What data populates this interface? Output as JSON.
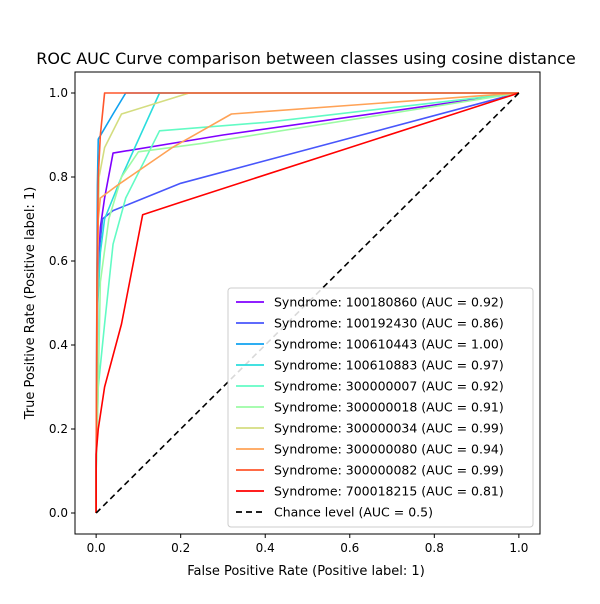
{
  "chart_data": {
    "type": "line",
    "title": "ROC AUC Curve comparison between classes using cosine distance",
    "xlabel": "False Positive Rate (Positive label: 1)",
    "ylabel": "True Positive Rate (Positive label: 1)",
    "xlim": [
      -0.05,
      1.05
    ],
    "ylim": [
      -0.05,
      1.05
    ],
    "xticks": [
      0.0,
      0.2,
      0.4,
      0.6,
      0.8,
      1.0
    ],
    "yticks": [
      0.0,
      0.2,
      0.4,
      0.6,
      0.8,
      1.0
    ],
    "xtick_labels": [
      "0.0",
      "0.2",
      "0.4",
      "0.6",
      "0.8",
      "1.0"
    ],
    "ytick_labels": [
      "0.0",
      "0.2",
      "0.4",
      "0.6",
      "0.8",
      "1.0"
    ],
    "grid": false,
    "legend_position": "lower-right",
    "series": [
      {
        "name": "Syndrome: 100180860 (AUC = 0.92)",
        "color": "#8000ff",
        "points": [
          [
            0,
            0
          ],
          [
            0,
            0.1
          ],
          [
            0.003,
            0.5
          ],
          [
            0.006,
            0.6
          ],
          [
            0.01,
            0.68
          ],
          [
            0.02,
            0.75
          ],
          [
            0.04,
            0.857
          ],
          [
            0.3,
            0.9
          ],
          [
            1,
            1
          ]
        ]
      },
      {
        "name": "Syndrome: 100192430 (AUC = 0.86)",
        "color": "#4856fb",
        "points": [
          [
            0,
            0
          ],
          [
            0,
            0.1
          ],
          [
            0.003,
            0.5
          ],
          [
            0.007,
            0.62
          ],
          [
            0.015,
            0.7
          ],
          [
            0.04,
            0.72
          ],
          [
            0.2,
            0.785
          ],
          [
            1,
            1
          ]
        ]
      },
      {
        "name": "Syndrome: 100610443 (AUC = 1.00)",
        "color": "#10a2f0",
        "points": [
          [
            0,
            0
          ],
          [
            0,
            0.1
          ],
          [
            0.002,
            0.6
          ],
          [
            0.003,
            0.78
          ],
          [
            0.005,
            0.89
          ],
          [
            0.04,
            0.95
          ],
          [
            0.07,
            1.0
          ],
          [
            1,
            1
          ]
        ]
      },
      {
        "name": "Syndrome: 100610883 (AUC = 0.97)",
        "color": "#2adddd",
        "points": [
          [
            0,
            0
          ],
          [
            0,
            0.1
          ],
          [
            0.004,
            0.5
          ],
          [
            0.01,
            0.62
          ],
          [
            0.02,
            0.7
          ],
          [
            0.06,
            0.8
          ],
          [
            0.15,
            1.0
          ],
          [
            1,
            1
          ]
        ]
      },
      {
        "name": "Syndrome: 300000007 (AUC = 0.92)",
        "color": "#62fbc4",
        "points": [
          [
            0,
            0
          ],
          [
            0,
            0.1
          ],
          [
            0.005,
            0.3
          ],
          [
            0.02,
            0.45
          ],
          [
            0.04,
            0.64
          ],
          [
            0.07,
            0.75
          ],
          [
            0.15,
            0.91
          ],
          [
            0.4,
            0.93
          ],
          [
            1,
            1
          ]
        ]
      },
      {
        "name": "Syndrome: 300000018 (AUC = 0.91)",
        "color": "#9cfba4",
        "points": [
          [
            0,
            0
          ],
          [
            0,
            0.1
          ],
          [
            0.005,
            0.3
          ],
          [
            0.01,
            0.55
          ],
          [
            0.03,
            0.7
          ],
          [
            0.06,
            0.8
          ],
          [
            0.1,
            0.86
          ],
          [
            0.25,
            0.88
          ],
          [
            1,
            1
          ]
        ]
      },
      {
        "name": "Syndrome: 300000034 (AUC = 0.99)",
        "color": "#d4dd80",
        "points": [
          [
            0,
            0
          ],
          [
            0,
            0.1
          ],
          [
            0.003,
            0.6
          ],
          [
            0.007,
            0.8
          ],
          [
            0.02,
            0.87
          ],
          [
            0.06,
            0.95
          ],
          [
            0.22,
            1.0
          ],
          [
            1,
            1
          ]
        ]
      },
      {
        "name": "Syndrome: 300000080 (AUC = 0.94)",
        "color": "#ffa256",
        "points": [
          [
            0,
            0
          ],
          [
            0,
            0.1
          ],
          [
            0.003,
            0.5
          ],
          [
            0.005,
            0.7
          ],
          [
            0.01,
            0.75
          ],
          [
            0.05,
            0.78
          ],
          [
            0.18,
            0.87
          ],
          [
            0.32,
            0.95
          ],
          [
            1,
            1
          ]
        ]
      },
      {
        "name": "Syndrome: 300000082 (AUC = 0.99)",
        "color": "#ff562c",
        "points": [
          [
            0,
            0
          ],
          [
            0,
            0.1
          ],
          [
            0.002,
            0.55
          ],
          [
            0.005,
            0.8
          ],
          [
            0.01,
            0.9
          ],
          [
            0.02,
            1.0
          ],
          [
            1,
            1
          ]
        ]
      },
      {
        "name": "Syndrome: 700018215 (AUC = 0.81)",
        "color": "#ff0000",
        "points": [
          [
            0,
            0
          ],
          [
            0,
            0.14
          ],
          [
            0.005,
            0.2
          ],
          [
            0.02,
            0.3
          ],
          [
            0.06,
            0.45
          ],
          [
            0.11,
            0.71
          ],
          [
            0.2,
            0.74
          ],
          [
            1,
            1
          ]
        ]
      },
      {
        "name": "Chance level (AUC = 0.5)",
        "color": "#000000",
        "dashed": true,
        "points": [
          [
            0,
            0
          ],
          [
            1,
            1
          ]
        ]
      }
    ]
  }
}
